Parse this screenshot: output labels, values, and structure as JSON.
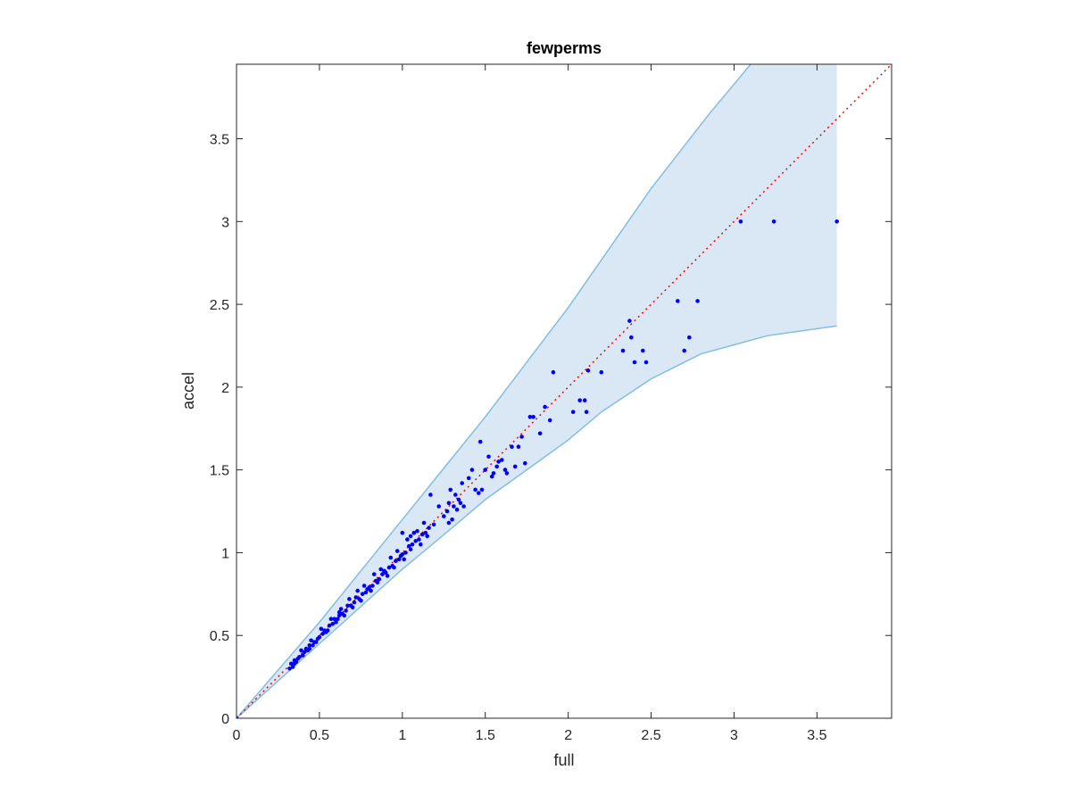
{
  "chart_data": {
    "type": "scatter",
    "title": "fewperms",
    "xlabel": "full",
    "ylabel": "accel",
    "xlim": [
      0,
      3.95
    ],
    "ylim": [
      0,
      3.95
    ],
    "x_ticks": [
      0,
      0.5,
      1,
      1.5,
      2,
      2.5,
      3,
      3.5
    ],
    "x_tick_labels": [
      "0",
      "0.5",
      "1",
      "1.5",
      "2",
      "2.5",
      "3",
      "3.5"
    ],
    "y_ticks": [
      0,
      0.5,
      1,
      1.5,
      2,
      2.5,
      3,
      3.5
    ],
    "y_tick_labels": [
      "0",
      "0.5",
      "1",
      "1.5",
      "2",
      "2.5",
      "3",
      "3.5"
    ],
    "grid": false,
    "legend": "none",
    "colors": {
      "points": "#0000ff",
      "band_fill": "#d9e8f4",
      "band_edge": "#84bde0",
      "reference_line": "#ff0000",
      "axes": "#262626"
    },
    "reference_line": {
      "style": "dotted",
      "from": [
        0,
        0
      ],
      "to": [
        3.95,
        3.95
      ]
    },
    "band": {
      "upper": [
        [
          0,
          0
        ],
        [
          0.5,
          0.58
        ],
        [
          1,
          1.2
        ],
        [
          1.5,
          1.82
        ],
        [
          2,
          2.48
        ],
        [
          2.5,
          3.2
        ],
        [
          2.85,
          3.65
        ],
        [
          3.1,
          3.95
        ]
      ],
      "right_edge_x": 3.62,
      "lower": [
        [
          0,
          0
        ],
        [
          0.5,
          0.45
        ],
        [
          1,
          0.9
        ],
        [
          1.3,
          1.15
        ],
        [
          1.5,
          1.32
        ],
        [
          1.75,
          1.5
        ],
        [
          2,
          1.68
        ],
        [
          2.2,
          1.85
        ],
        [
          2.5,
          2.05
        ],
        [
          2.8,
          2.2
        ],
        [
          3.2,
          2.31
        ],
        [
          3.62,
          2.37
        ]
      ]
    },
    "series": [
      {
        "points": [
          [
            0,
            0
          ],
          [
            0.32,
            0.3
          ],
          [
            0.33,
            0.33
          ],
          [
            0.34,
            0.31
          ],
          [
            0.35,
            0.35
          ],
          [
            0.36,
            0.34
          ],
          [
            0.37,
            0.36
          ],
          [
            0.38,
            0.37
          ],
          [
            0.4,
            0.38
          ],
          [
            0.41,
            0.4
          ],
          [
            0.43,
            0.41
          ],
          [
            0.44,
            0.44
          ],
          [
            0.46,
            0.44
          ],
          [
            0.47,
            0.46
          ],
          [
            0.49,
            0.48
          ],
          [
            0.5,
            0.49
          ],
          [
            0.52,
            0.51
          ],
          [
            0.53,
            0.53
          ],
          [
            0.55,
            0.53
          ],
          [
            0.56,
            0.56
          ],
          [
            0.58,
            0.57
          ],
          [
            0.59,
            0.6
          ],
          [
            0.61,
            0.6
          ],
          [
            0.62,
            0.62
          ],
          [
            0.64,
            0.63
          ],
          [
            0.66,
            0.65
          ],
          [
            0.67,
            0.68
          ],
          [
            0.69,
            0.68
          ],
          [
            0.71,
            0.7
          ],
          [
            0.72,
            0.73
          ],
          [
            0.74,
            0.72
          ],
          [
            0.76,
            0.75
          ],
          [
            0.78,
            0.76
          ],
          [
            0.8,
            0.79
          ],
          [
            0.82,
            0.8
          ],
          [
            0.84,
            0.83
          ],
          [
            0.86,
            0.84
          ],
          [
            0.88,
            0.87
          ],
          [
            0.9,
            0.88
          ],
          [
            0.92,
            0.91
          ],
          [
            0.94,
            0.92
          ],
          [
            0.96,
            0.95
          ],
          [
            0.98,
            0.96
          ],
          [
            1.0,
            0.99
          ],
          [
            1.02,
            1.0
          ],
          [
            1.04,
            1.04
          ],
          [
            1.06,
            1.05
          ],
          [
            1.08,
            1.07
          ],
          [
            1.1,
            1.08
          ],
          [
            1.12,
            1.11
          ],
          [
            1.14,
            1.12
          ],
          [
            1.16,
            1.15
          ],
          [
            1.19,
            1.17
          ],
          [
            0.39,
            0.41
          ],
          [
            0.45,
            0.47
          ],
          [
            0.51,
            0.54
          ],
          [
            0.57,
            0.6
          ],
          [
            0.63,
            0.66
          ],
          [
            0.68,
            0.72
          ],
          [
            0.73,
            0.77
          ],
          [
            0.77,
            0.8
          ],
          [
            0.83,
            0.87
          ],
          [
            0.87,
            0.9
          ],
          [
            0.93,
            0.97
          ],
          [
            0.97,
            1.01
          ],
          [
            1.03,
            1.08
          ],
          [
            1.07,
            1.12
          ],
          [
            1.13,
            1.18
          ],
          [
            0.6,
            0.58
          ],
          [
            0.7,
            0.67
          ],
          [
            0.81,
            0.77
          ],
          [
            0.91,
            0.86
          ],
          [
            1.01,
            0.96
          ],
          [
            1.11,
            1.05
          ],
          [
            0.35,
            0.33
          ],
          [
            0.48,
            0.46
          ],
          [
            0.54,
            0.52
          ],
          [
            0.65,
            0.62
          ],
          [
            0.75,
            0.71
          ],
          [
            0.85,
            0.82
          ],
          [
            0.95,
            0.91
          ],
          [
            1.05,
            1.02
          ],
          [
            1.15,
            1.1
          ],
          [
            0.42,
            0.42
          ],
          [
            0.44,
            0.42
          ],
          [
            0.62,
            0.64
          ],
          [
            0.79,
            0.78
          ],
          [
            0.89,
            0.89
          ],
          [
            0.99,
            0.98
          ],
          [
            1.0,
            1.12
          ],
          [
            1.05,
            1.1
          ],
          [
            1.09,
            1.13
          ],
          [
            1.17,
            1.35
          ],
          [
            1.22,
            1.28
          ],
          [
            1.25,
            1.22
          ],
          [
            1.27,
            1.25
          ],
          [
            1.28,
            1.3
          ],
          [
            1.29,
            1.38
          ],
          [
            1.3,
            1.2
          ],
          [
            1.31,
            1.28
          ],
          [
            1.33,
            1.26
          ],
          [
            1.34,
            1.32
          ],
          [
            1.35,
            1.3
          ],
          [
            1.36,
            1.42
          ],
          [
            1.37,
            1.28
          ],
          [
            1.28,
            1.18
          ],
          [
            1.32,
            1.35
          ],
          [
            1.4,
            1.45
          ],
          [
            1.42,
            1.5
          ],
          [
            1.44,
            1.38
          ],
          [
            1.46,
            1.36
          ],
          [
            1.47,
            1.67
          ],
          [
            1.48,
            1.38
          ],
          [
            1.5,
            1.5
          ],
          [
            1.52,
            1.58
          ],
          [
            1.54,
            1.46
          ],
          [
            1.55,
            1.48
          ],
          [
            1.57,
            1.52
          ],
          [
            1.58,
            1.55
          ],
          [
            1.6,
            1.56
          ],
          [
            1.62,
            1.5
          ],
          [
            1.63,
            1.48
          ],
          [
            1.66,
            1.64
          ],
          [
            1.68,
            1.52
          ],
          [
            1.7,
            1.64
          ],
          [
            1.72,
            1.7
          ],
          [
            1.74,
            1.54
          ],
          [
            1.77,
            1.82
          ],
          [
            1.79,
            1.82
          ],
          [
            1.83,
            1.72
          ],
          [
            1.86,
            1.88
          ],
          [
            1.89,
            1.8
          ],
          [
            1.91,
            2.09
          ],
          [
            2.03,
            1.85
          ],
          [
            2.07,
            1.92
          ],
          [
            2.1,
            1.92
          ],
          [
            2.11,
            1.85
          ],
          [
            2.12,
            2.1
          ],
          [
            2.2,
            2.09
          ],
          [
            2.33,
            2.22
          ],
          [
            2.37,
            2.4
          ],
          [
            2.38,
            2.3
          ],
          [
            2.4,
            2.15
          ],
          [
            2.45,
            2.22
          ],
          [
            2.47,
            2.15
          ],
          [
            2.66,
            2.52
          ],
          [
            2.7,
            2.22
          ],
          [
            2.73,
            2.3
          ],
          [
            2.78,
            2.52
          ],
          [
            3.04,
            3.0
          ],
          [
            3.24,
            3.0
          ],
          [
            3.62,
            3.0
          ]
        ]
      }
    ]
  }
}
